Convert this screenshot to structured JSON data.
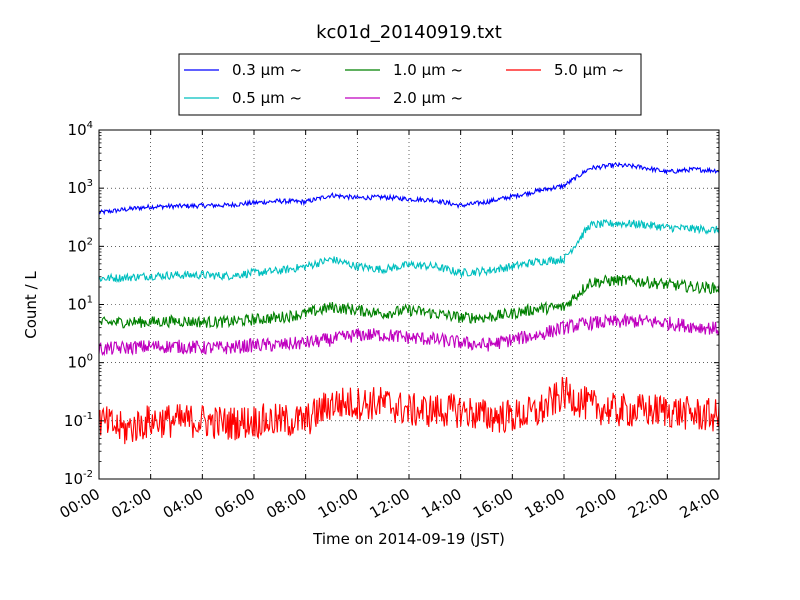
{
  "chart_data": {
    "type": "line",
    "title": "kc01d_20140919.txt",
    "xlabel": "Time on 2014-09-19 (JST)",
    "ylabel": "Count / L",
    "yscale": "log",
    "ylim": [
      0.01,
      10000
    ],
    "xlim": [
      "00:00",
      "24:00"
    ],
    "x_ticks": [
      "00:00",
      "02:00",
      "04:00",
      "06:00",
      "08:00",
      "10:00",
      "12:00",
      "14:00",
      "16:00",
      "18:00",
      "20:00",
      "22:00",
      "24:00"
    ],
    "y_ticks": [
      {
        "value": 0.01,
        "base": "10",
        "exp": "-2"
      },
      {
        "value": 0.1,
        "base": "10",
        "exp": "-1"
      },
      {
        "value": 1,
        "base": "10",
        "exp": "0"
      },
      {
        "value": 10,
        "base": "10",
        "exp": "1"
      },
      {
        "value": 100,
        "base": "10",
        "exp": "2"
      },
      {
        "value": 1000,
        "base": "10",
        "exp": "3"
      },
      {
        "value": 10000,
        "base": "10",
        "exp": "4"
      }
    ],
    "grid": true,
    "legend_position": "top",
    "x": [
      "00:00",
      "01:00",
      "02:00",
      "03:00",
      "04:00",
      "05:00",
      "06:00",
      "07:00",
      "08:00",
      "09:00",
      "10:00",
      "11:00",
      "12:00",
      "13:00",
      "14:00",
      "15:00",
      "16:00",
      "17:00",
      "18:00",
      "19:00",
      "20:00",
      "21:00",
      "22:00",
      "23:00",
      "24:00"
    ],
    "series": [
      {
        "name": "0.3 μm ~",
        "color": "#0000ff",
        "noise": 0.04,
        "values": [
          380,
          430,
          480,
          490,
          500,
          510,
          560,
          600,
          580,
          760,
          680,
          700,
          650,
          620,
          500,
          580,
          720,
          900,
          1100,
          2200,
          2500,
          2300,
          1900,
          2100,
          2000
        ]
      },
      {
        "name": "0.5 μm ~",
        "color": "#00bfbf",
        "noise": 0.07,
        "values": [
          28,
          29,
          31,
          32,
          32,
          31,
          35,
          38,
          45,
          60,
          45,
          40,
          48,
          45,
          35,
          38,
          45,
          55,
          60,
          230,
          250,
          240,
          210,
          200,
          190
        ]
      },
      {
        "name": "1.0 μm ~",
        "color": "#008000",
        "noise": 0.1,
        "values": [
          4.8,
          5.0,
          5.0,
          5.2,
          5.0,
          5.0,
          5.5,
          6.0,
          7.0,
          9.0,
          8.0,
          7.0,
          8.0,
          7.0,
          6.0,
          6.0,
          7.0,
          8.5,
          9.0,
          24,
          26,
          25,
          22,
          20,
          19
        ]
      },
      {
        "name": "2.0 μm ~",
        "color": "#bf00bf",
        "noise": 0.12,
        "values": [
          1.7,
          1.8,
          1.9,
          1.9,
          1.8,
          1.8,
          2.0,
          2.0,
          2.2,
          2.5,
          3.0,
          3.0,
          2.7,
          2.5,
          2.2,
          2.0,
          2.5,
          3.0,
          4.0,
          4.8,
          5.0,
          5.2,
          4.8,
          4.2,
          3.8
        ]
      },
      {
        "name": "5.0 μm ~",
        "color": "#ff0000",
        "noise": 0.3,
        "values": [
          0.1,
          0.07,
          0.1,
          0.1,
          0.1,
          0.09,
          0.1,
          0.1,
          0.1,
          0.2,
          0.2,
          0.2,
          0.15,
          0.15,
          0.15,
          0.12,
          0.12,
          0.14,
          0.3,
          0.18,
          0.15,
          0.15,
          0.15,
          0.13,
          0.12
        ]
      }
    ]
  }
}
